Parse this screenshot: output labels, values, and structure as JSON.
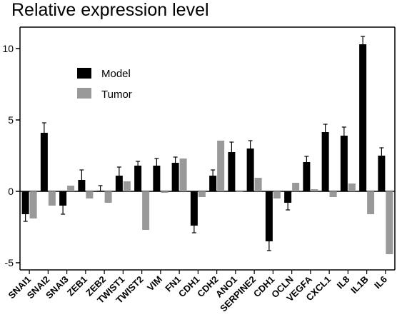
{
  "chart_data": {
    "type": "bar",
    "title": "Relative expression level",
    "xlabel": "",
    "ylabel": "",
    "ylim": [
      -5.5,
      11.5
    ],
    "yticks": [
      -5,
      0,
      5,
      10
    ],
    "legend_position": "top-left",
    "categories": [
      "SNAI1",
      "SNAI2",
      "SNAI3",
      "ZEB1",
      "ZEB2",
      "TWIST1",
      "TWIST2",
      "VIM",
      "FN1",
      "CDH1",
      "CDH2",
      "ANO1",
      "SERPINE2",
      "CDH1",
      "OCLN",
      "VEGFA",
      "CXCL1",
      "IL8",
      "IL1B",
      "IL6"
    ],
    "series": [
      {
        "name": "Model",
        "color": "#000000",
        "values": [
          -1.6,
          4.1,
          -1.0,
          0.8,
          0.05,
          1.1,
          1.8,
          1.8,
          2.0,
          -2.4,
          1.1,
          2.75,
          3.0,
          -3.5,
          -0.8,
          2.05,
          4.15,
          3.9,
          10.3,
          2.5
        ],
        "errors": [
          0.5,
          0.7,
          0.6,
          0.7,
          0.35,
          0.6,
          0.3,
          0.5,
          0.4,
          0.5,
          0.4,
          0.7,
          0.55,
          0.65,
          0.5,
          0.4,
          0.55,
          0.6,
          0.55,
          0.55
        ]
      },
      {
        "name": "Tumor",
        "color": "#999999",
        "values": [
          -1.9,
          -1.0,
          0.4,
          -0.5,
          -0.8,
          0.7,
          -2.7,
          -0.1,
          2.3,
          -0.4,
          3.55,
          -0.05,
          0.95,
          -0.5,
          0.6,
          0.15,
          -0.4,
          0.55,
          -1.6,
          -4.4
        ]
      }
    ]
  }
}
